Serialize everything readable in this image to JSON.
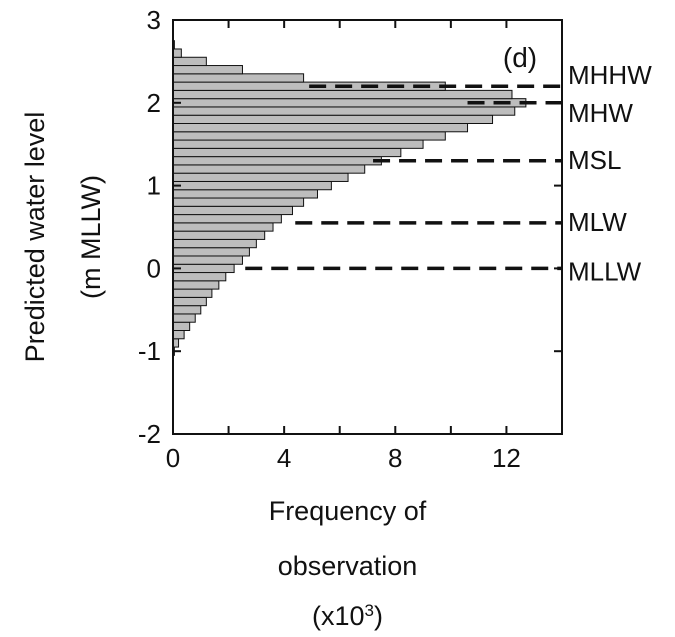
{
  "chart_data": {
    "type": "bar",
    "orientation": "horizontal",
    "panel_label": "(d)",
    "xlabel_lines": [
      "Frequency of",
      "observation",
      "(x10",
      "3",
      ")"
    ],
    "ylabel_lines": [
      "Predicted water level",
      "(m MLLW)"
    ],
    "xlim": [
      0,
      14
    ],
    "ylim": [
      -2,
      3
    ],
    "x_ticks": [
      0,
      4,
      8,
      12
    ],
    "y_ticks": [
      -2,
      -1,
      0,
      1,
      2,
      3
    ],
    "bin_width": 0.1,
    "bins": [
      {
        "y": -1.0,
        "x": 0.05
      },
      {
        "y": -0.9,
        "x": 0.2
      },
      {
        "y": -0.8,
        "x": 0.4
      },
      {
        "y": -0.7,
        "x": 0.6
      },
      {
        "y": -0.6,
        "x": 0.8
      },
      {
        "y": -0.5,
        "x": 1.0
      },
      {
        "y": -0.4,
        "x": 1.2
      },
      {
        "y": -0.3,
        "x": 1.4
      },
      {
        "y": -0.2,
        "x": 1.65
      },
      {
        "y": -0.1,
        "x": 1.9
      },
      {
        "y": 0.0,
        "x": 2.2
      },
      {
        "y": 0.1,
        "x": 2.5
      },
      {
        "y": 0.2,
        "x": 2.75
      },
      {
        "y": 0.3,
        "x": 3.0
      },
      {
        "y": 0.4,
        "x": 3.3
      },
      {
        "y": 0.5,
        "x": 3.6
      },
      {
        "y": 0.6,
        "x": 3.9
      },
      {
        "y": 0.7,
        "x": 4.3
      },
      {
        "y": 0.8,
        "x": 4.7
      },
      {
        "y": 0.9,
        "x": 5.2
      },
      {
        "y": 1.0,
        "x": 5.7
      },
      {
        "y": 1.1,
        "x": 6.3
      },
      {
        "y": 1.2,
        "x": 6.9
      },
      {
        "y": 1.3,
        "x": 7.5
      },
      {
        "y": 1.4,
        "x": 8.2
      },
      {
        "y": 1.5,
        "x": 9.0
      },
      {
        "y": 1.6,
        "x": 9.8
      },
      {
        "y": 1.7,
        "x": 10.6
      },
      {
        "y": 1.8,
        "x": 11.5
      },
      {
        "y": 1.9,
        "x": 12.3
      },
      {
        "y": 2.0,
        "x": 12.7
      },
      {
        "y": 2.1,
        "x": 12.2
      },
      {
        "y": 2.2,
        "x": 9.8
      },
      {
        "y": 2.3,
        "x": 4.7
      },
      {
        "y": 2.4,
        "x": 2.5
      },
      {
        "y": 2.5,
        "x": 1.2
      },
      {
        "y": 2.6,
        "x": 0.3
      },
      {
        "y": 2.7,
        "x": 0.05
      }
    ],
    "reference_lines": [
      {
        "label": "MHHW",
        "y": 2.2,
        "x_start": 4.9
      },
      {
        "label": "MHW",
        "y": 2.0,
        "x_start": 10.6
      },
      {
        "label": "MSL",
        "y": 1.3,
        "x_start": 7.2
      },
      {
        "label": "MLW",
        "y": 0.55,
        "x_start": 4.4
      },
      {
        "label": "MLLW",
        "y": 0.0,
        "x_start": 2.6
      }
    ],
    "colors": {
      "bar_fill": "#bdbdbd",
      "bar_stroke": "#111111",
      "line": "#111111"
    }
  }
}
